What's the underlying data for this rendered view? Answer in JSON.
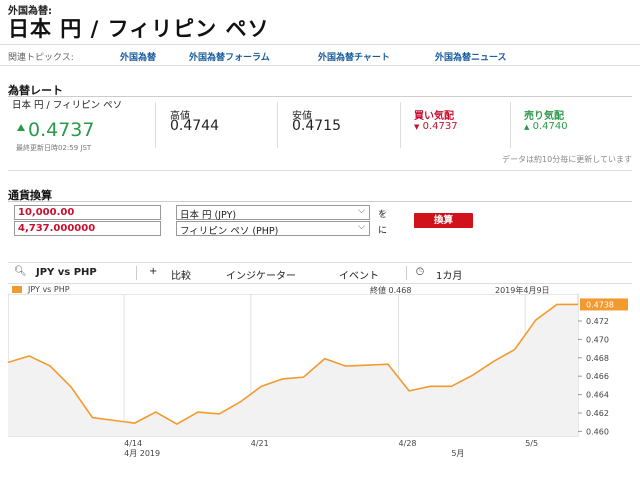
{
  "header": {
    "category": "外国為替:",
    "title": "日本 円 / フィリピン ペソ"
  },
  "topics": {
    "label": "関連トピックス:",
    "links": [
      "外国為替",
      "外国為替フォーラム",
      "外国為替チャート",
      "外国為替ニュース"
    ]
  },
  "rates": {
    "heading": "為替レート",
    "pair_name": "日本 円 / フィリピン ペソ",
    "current": "0.4737",
    "last_updated": "最終更新日時02:59 JST",
    "high_label": "高値",
    "high": "0.4744",
    "low_label": "安値",
    "low": "0.4715",
    "buy_label": "買い気配",
    "buy": "0.4737",
    "sell_label": "売り気配",
    "sell": "0.4740",
    "update_note": "データは約10分毎に更新しています",
    "colors": {
      "up": "#2a9a4a",
      "down": "#c8102e"
    }
  },
  "converter": {
    "heading": "通貨換算",
    "from_amount": "10,000.00",
    "from_currency": "日本 円 (JPY)",
    "to_amount": "4,737.000000",
    "to_currency": "フィリピン ペソ (PHP)",
    "particle_wo": "を",
    "particle_ni": "に",
    "button": "換算"
  },
  "chart_bar": {
    "pair": "JPY vs PHP",
    "compare": "比較",
    "indicator": "インジケーター",
    "event": "イベント",
    "range": "1カ月"
  },
  "chart_info": {
    "legend": "JPY vs PHP",
    "close": "終値 0.468",
    "date": "2019年4月9日",
    "current_badge": "0.4738"
  },
  "chart_data": {
    "type": "area",
    "series": [
      {
        "name": "JPY vs PHP",
        "x": [
          0,
          1,
          2,
          3,
          4,
          5,
          6,
          7,
          8,
          9,
          10,
          11,
          12,
          13,
          14,
          15,
          16,
          17,
          18,
          19,
          20,
          21,
          22,
          23,
          24,
          25,
          26,
          27
        ],
        "values": [
          0.4675,
          0.4682,
          0.4671,
          0.4648,
          0.4615,
          0.4612,
          0.4609,
          0.4621,
          0.4608,
          0.4621,
          0.4619,
          0.4632,
          0.4649,
          0.4657,
          0.4659,
          0.4679,
          0.4671,
          0.4672,
          0.4673,
          0.4644,
          0.4649,
          0.4649,
          0.4661,
          0.4676,
          0.4689,
          0.4721,
          0.4738,
          0.4738
        ]
      }
    ],
    "y_ticks": [
      "0.472",
      "0.470",
      "0.468",
      "0.466",
      "0.464",
      "0.462",
      "0.460"
    ],
    "ylim": [
      0.4595,
      0.4745
    ],
    "x_tick_labels": [
      "4/14",
      "4/21",
      "4/28",
      "5/5"
    ],
    "x_tick_positions": [
      5.5,
      11.5,
      18.5,
      24.5
    ],
    "x_secondary_labels": [
      "4月 2019",
      "5月"
    ],
    "x_secondary_positions": [
      5.5,
      21
    ],
    "line_color": "#f39a2e",
    "fill_color": "#f2f2f2"
  }
}
